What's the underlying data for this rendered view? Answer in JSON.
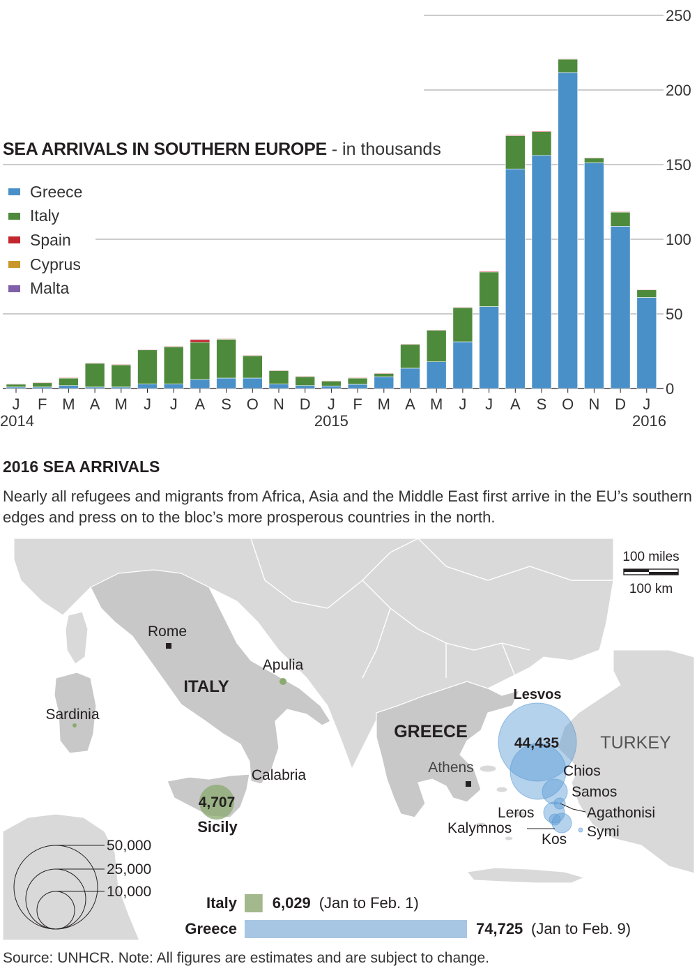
{
  "chart_data": {
    "type": "bar",
    "stacked": true,
    "title": "SEA ARRIVALS IN SOUTHERN EUROPE",
    "subtitle": "- in thousands",
    "categories": [
      "J",
      "F",
      "M",
      "A",
      "M",
      "J",
      "J",
      "A",
      "S",
      "O",
      "N",
      "D",
      "J",
      "F",
      "M",
      "A",
      "M",
      "J",
      "J",
      "A",
      "S",
      "O",
      "N",
      "D",
      "J"
    ],
    "year_labels": [
      "2014",
      "2015",
      "2016"
    ],
    "ylim": [
      0,
      250
    ],
    "yticks": [
      0,
      50,
      100,
      150,
      200,
      250
    ],
    "ytick_labels": [
      "0",
      "50",
      "100",
      "150",
      "200",
      "250"
    ],
    "legend_position": "left",
    "series": [
      {
        "name": "Greece",
        "color": "#4a90c8",
        "values": [
          1,
          1,
          2,
          1,
          1,
          3,
          3,
          6,
          7,
          7,
          3,
          2,
          1.7,
          2.8,
          7.9,
          13.6,
          17.9,
          31.3,
          54.9,
          147.1,
          156.2,
          211.7,
          151.2,
          108.7,
          61.0
        ]
      },
      {
        "name": "Italy",
        "color": "#4e8a3c",
        "values": [
          2,
          3,
          5,
          16,
          15,
          23,
          25,
          25,
          26,
          15,
          9,
          6,
          3.5,
          4.4,
          2.4,
          16.1,
          21.2,
          22.9,
          23.2,
          22.3,
          15.9,
          8.9,
          3.2,
          9.5,
          5.2
        ]
      },
      {
        "name": "Spain",
        "color": "#c1272d",
        "values": [
          0.2,
          0.2,
          0.3,
          0.2,
          0.2,
          0.2,
          0.3,
          2,
          0.4,
          0.4,
          0.3,
          0.3,
          0.1,
          0.1,
          0.1,
          0.2,
          0.3,
          0.3,
          0.5,
          0.5,
          0.5,
          0.4,
          0.3,
          0.3,
          0.2
        ]
      },
      {
        "name": "Cyprus",
        "color": "#c8962a",
        "values": [
          0,
          0,
          0,
          0,
          0,
          0,
          0,
          0,
          0,
          0,
          0,
          0,
          0,
          0,
          0,
          0,
          0,
          0,
          0,
          0,
          0,
          0,
          0,
          0,
          0
        ]
      },
      {
        "name": "Malta",
        "color": "#8060a8",
        "values": [
          0,
          0,
          0,
          0,
          0,
          0,
          0,
          0.1,
          0,
          0,
          0,
          0,
          0,
          0,
          0,
          0,
          0,
          0,
          0,
          0,
          0,
          0,
          0,
          0,
          0
        ]
      }
    ]
  },
  "section": {
    "title": "2016 SEA ARRIVALS",
    "description": "Nearly all refugees and migrants from Africa, Asia and the Middle East first arrive in the EU’s southern edges and press on to the bloc’s more prosperous countries in the north."
  },
  "map": {
    "scale_miles": "100 miles",
    "scale_km": "100 km",
    "countries": {
      "italy": "ITALY",
      "greece": "GREECE",
      "turkey": "TURKEY"
    },
    "places": {
      "rome": "Rome",
      "apulia": "Apulia",
      "sardinia": "Sardinia",
      "calabria": "Calabria",
      "sicily": "Sicily",
      "athens": "Athens"
    },
    "islands": {
      "lesvos": "Lesvos",
      "chios": "Chios",
      "samos": "Samos",
      "leros": "Leros",
      "agathonisi": "Agathonisi",
      "kalymnos": "Kalymnos",
      "kos": "Kos",
      "symi": "Symi"
    },
    "values": {
      "lesvos": "44,435",
      "sicily": "4,707"
    },
    "size_legend": [
      "50,000",
      "25,000",
      "10,000"
    ],
    "colors": {
      "land": "#d9d9d9",
      "highlight": "#c8c8c8",
      "sea": "#ffffff",
      "greece_bubble": "#5b9bd5",
      "italy_bubble": "#8aaa6e"
    }
  },
  "totals": {
    "italy": {
      "label": "Italy",
      "value": "6,029",
      "note": "(Jan to Feb. 1)",
      "amount": 6029,
      "color": "#a3b88c"
    },
    "greece": {
      "label": "Greece",
      "value": "74,725",
      "note": "(Jan to Feb. 9)",
      "amount": 74725,
      "color": "#a7c6e3"
    }
  },
  "source": "Source: UNHCR. Note: All figures are estimates and are subject to change."
}
